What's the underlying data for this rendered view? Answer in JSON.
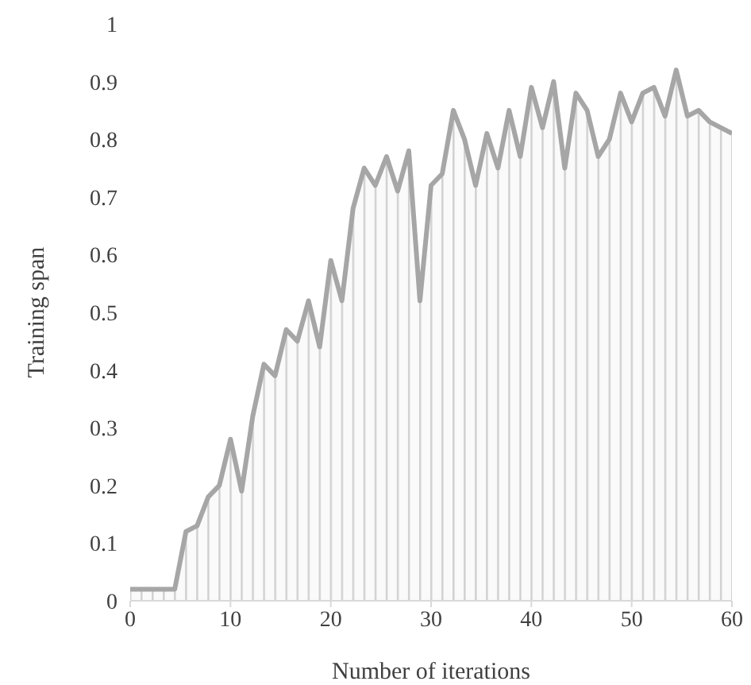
{
  "chart_data": {
    "type": "area",
    "xlabel": "Number of iterations",
    "ylabel": "Training span",
    "x": [
      0,
      1.11,
      2.22,
      3.33,
      4.44,
      5.56,
      6.67,
      7.78,
      8.89,
      10,
      11.11,
      12.22,
      13.33,
      14.44,
      15.56,
      16.67,
      17.78,
      18.89,
      20,
      21.11,
      22.22,
      23.33,
      24.44,
      25.56,
      26.67,
      27.78,
      28.89,
      30,
      31.11,
      32.22,
      33.33,
      34.44,
      35.56,
      36.67,
      37.78,
      38.89,
      40,
      41.11,
      42.22,
      43.33,
      44.44,
      45.56,
      46.67,
      47.78,
      48.89,
      50,
      51.11,
      52.22,
      53.33,
      54.44,
      55.56,
      56.67,
      57.78,
      58.89,
      60
    ],
    "series": [
      {
        "color": "#a6a6a6",
        "values": [
          0.02,
          0.02,
          0.02,
          0.02,
          0.02,
          0.12,
          0.13,
          0.18,
          0.2,
          0.28,
          0.19,
          0.32,
          0.41,
          0.39,
          0.47,
          0.45,
          0.52,
          0.44,
          0.59,
          0.52,
          0.68,
          0.75,
          0.72,
          0.77,
          0.71,
          0.78,
          0.52,
          0.72,
          0.74,
          0.85,
          0.8,
          0.72,
          0.81,
          0.75,
          0.85,
          0.77,
          0.89,
          0.82,
          0.9,
          0.75,
          0.88,
          0.85,
          0.77,
          0.8,
          0.88,
          0.83,
          0.88,
          0.89,
          0.84,
          0.92,
          0.84,
          0.85,
          0.83,
          0.82,
          0.81
        ]
      }
    ],
    "xlim": [
      0,
      60
    ],
    "xticks": [
      0,
      10,
      20,
      30,
      40,
      50,
      60
    ],
    "ylim": [
      0,
      1
    ],
    "yticks": [
      0,
      0.1,
      0.2,
      0.3,
      0.4,
      0.5,
      0.6,
      0.7,
      0.8,
      0.9,
      1
    ],
    "grid": false,
    "legend": false,
    "marker": "none",
    "line_style": "solid"
  }
}
